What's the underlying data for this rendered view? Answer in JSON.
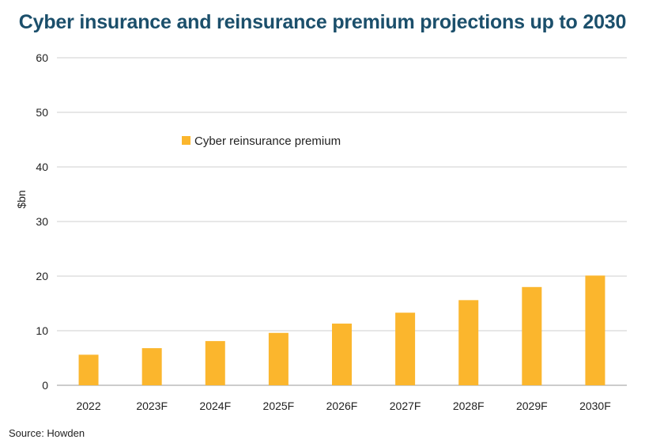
{
  "chart_data": {
    "type": "bar",
    "title": "Cyber insurance and reinsurance premium projections up to 2030",
    "ylabel": "$bn",
    "xlabel": "",
    "categories": [
      "2022",
      "2023F",
      "2024F",
      "2025F",
      "2026F",
      "2027F",
      "2028F",
      "2029F",
      "2030F"
    ],
    "series": [
      {
        "name": "Cyber reinsurance premium",
        "color": "#fbb62d",
        "values": [
          5.6,
          6.8,
          8.1,
          9.6,
          11.3,
          13.3,
          15.6,
          18.0,
          20.1
        ]
      }
    ],
    "ylim": [
      0,
      60
    ],
    "yticks": [
      0,
      10,
      20,
      30,
      40,
      50,
      60
    ],
    "grid": true,
    "legend_position": "top-left-inside"
  },
  "source": "Source: Howden"
}
